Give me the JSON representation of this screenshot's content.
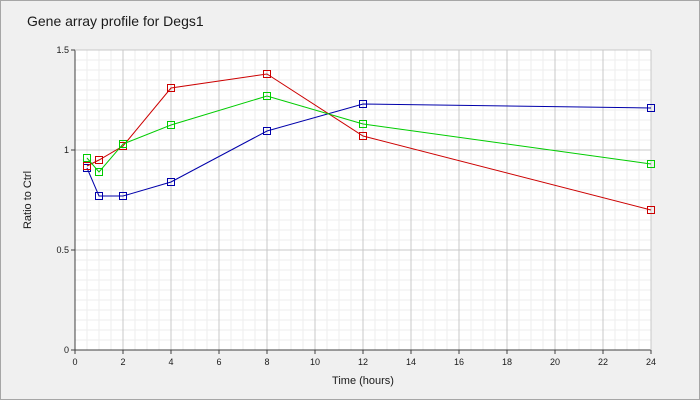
{
  "chart_data": {
    "type": "line",
    "title": "Gene array profile for Degs1",
    "xlabel": "Time (hours)",
    "ylabel": "Ratio to Ctrl",
    "xlim": [
      0,
      24
    ],
    "ylim": [
      0,
      1.5
    ],
    "x_ticks": [
      0,
      2,
      4,
      6,
      8,
      10,
      12,
      14,
      16,
      18,
      20,
      22,
      24
    ],
    "x_tick_labels": [
      "0",
      "2",
      "4",
      "6",
      "8",
      "10",
      "12",
      "14",
      "16",
      "18",
      "20",
      "22",
      "24"
    ],
    "y_ticks": [
      0,
      0.5,
      1,
      1.5
    ],
    "y_tick_labels": [
      "0",
      "0.5",
      "1",
      "1.5"
    ],
    "grid": true,
    "legend": "none",
    "marker": "open-square",
    "series": [
      {
        "color": "#0000aa",
        "x": [
          0.5,
          1,
          2,
          4,
          8,
          12,
          24
        ],
        "y": [
          0.91,
          0.77,
          0.77,
          0.84,
          1.095,
          1.23,
          1.21
        ]
      },
      {
        "color": "#cc0000",
        "x": [
          0.5,
          1,
          2,
          4,
          8,
          12,
          24
        ],
        "y": [
          0.92,
          0.95,
          1.02,
          1.31,
          1.38,
          1.07,
          0.7
        ]
      },
      {
        "color": "#00cc00",
        "x": [
          0.5,
          1,
          2,
          4,
          8,
          12,
          24
        ],
        "y": [
          0.96,
          0.89,
          1.03,
          1.125,
          1.27,
          1.13,
          0.93
        ]
      }
    ]
  }
}
